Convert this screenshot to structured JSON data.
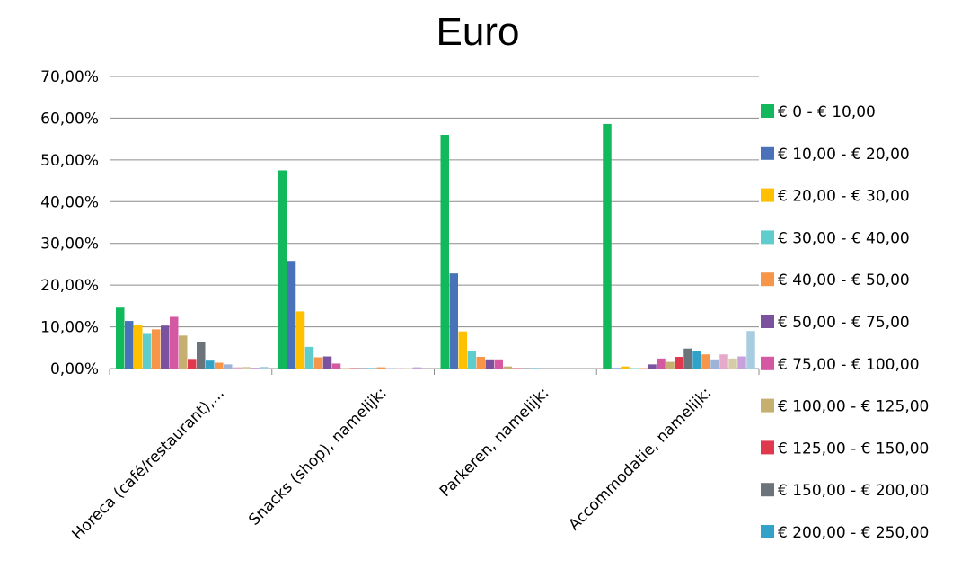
{
  "chart_data": {
    "type": "bar",
    "title": "Euro",
    "xlabel": "",
    "ylabel": "",
    "ylim": [
      0,
      70
    ],
    "yticks": [
      "0,00%",
      "10,00%",
      "20,00%",
      "30,00%",
      "40,00%",
      "50,00%",
      "60,00%",
      "70,00%"
    ],
    "grid": true,
    "legend_position": "right",
    "categories": [
      "Horeca (café/restaurant),...",
      "Snacks (shop), namelijk:",
      "Parkeren, namelijk:",
      "Accommodatie, namelijk:"
    ],
    "series": [
      {
        "name": "€ 0 - € 10,00",
        "color": "#12b85c",
        "values": [
          14.6,
          47.5,
          56.0,
          58.6
        ]
      },
      {
        "name": "€ 10,00 - € 20,00",
        "color": "#4a72b8",
        "values": [
          11.4,
          25.8,
          22.8,
          0.1
        ]
      },
      {
        "name": "€ 20,00 - € 30,00",
        "color": "#ffc000",
        "values": [
          10.4,
          13.7,
          8.9,
          0.5
        ]
      },
      {
        "name": "€ 30,00 - € 40,00",
        "color": "#5fcccd",
        "values": [
          8.3,
          5.2,
          4.1,
          0.1
        ]
      },
      {
        "name": "€ 40,00 - € 50,00",
        "color": "#f79648",
        "values": [
          9.4,
          2.7,
          2.8,
          0.1
        ]
      },
      {
        "name": "€ 50,00 - € 75,00",
        "color": "#7a529e",
        "values": [
          10.3,
          2.9,
          2.2,
          1.0
        ]
      },
      {
        "name": "€ 75,00 - € 100,00",
        "color": "#d458a2",
        "values": [
          12.4,
          1.2,
          2.2,
          2.4
        ]
      },
      {
        "name": "€ 100,00 - € 125,00",
        "color": "#c5b071",
        "values": [
          7.9,
          0.1,
          0.5,
          1.6
        ]
      },
      {
        "name": "€ 125,00 - € 150,00",
        "color": "#e0394e",
        "values": [
          2.3,
          0.1,
          0.1,
          2.8
        ]
      },
      {
        "name": "€ 150,00 - € 200,00",
        "color": "#6b747a",
        "values": [
          6.3,
          0.1,
          0.1,
          4.8
        ]
      },
      {
        "name": "€ 200,00 - € 250,00",
        "color": "#33a2c8",
        "values": [
          1.9,
          0.1,
          0.1,
          4.2
        ]
      },
      {
        "values": [
          1.4,
          0.3,
          0.0,
          3.4
        ],
        "color": "#f79648"
      },
      {
        "values": [
          1.0,
          0.1,
          0.0,
          2.2
        ],
        "color": "#9fb3d9"
      },
      {
        "values": [
          0.3,
          0.1,
          0.0,
          3.4
        ],
        "color": "#e6a9c9"
      },
      {
        "values": [
          0.4,
          0.1,
          0.0,
          2.4
        ],
        "color": "#d6cda8"
      },
      {
        "values": [
          0.2,
          0.3,
          0.0,
          2.9
        ],
        "color": "#c9a0dc"
      },
      {
        "values": [
          0.4,
          0.0,
          0.0,
          9.0
        ],
        "color": "#a8cde0"
      }
    ]
  }
}
